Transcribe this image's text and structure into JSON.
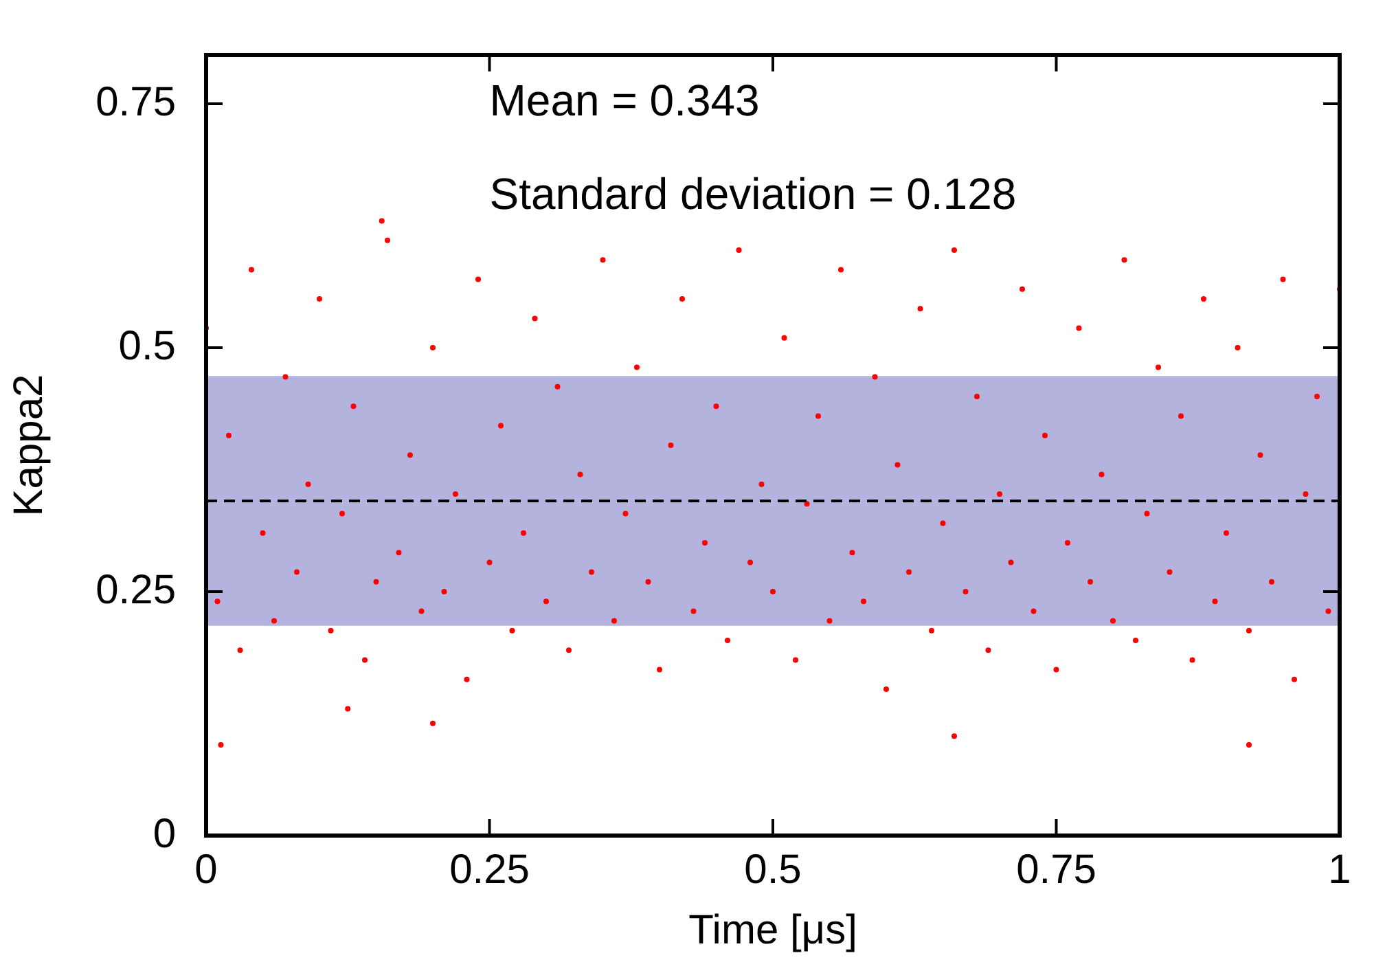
{
  "chart_data": {
    "type": "scatter",
    "xlabel": "Time [μs]",
    "ylabel": "Kappa2",
    "annotations": [
      "Mean = 0.343",
      "Standard deviation = 0.128"
    ],
    "xlim": [
      0,
      1
    ],
    "ylim": [
      0,
      0.8
    ],
    "xticks": [
      0,
      0.25,
      0.5,
      0.75,
      1
    ],
    "yticks": [
      0,
      0.25,
      0.5,
      0.75
    ],
    "grid": false,
    "legend": false,
    "marker": "circle",
    "ref_lines": [
      {
        "axis": "y",
        "value": 0.343,
        "color": "#000000",
        "line_style": "dashed"
      }
    ],
    "bands": [
      {
        "axis": "y",
        "from": 0.215,
        "to": 0.471,
        "color": "#b3b3de"
      }
    ],
    "series": [
      {
        "color": "#ff0000",
        "x": [
          0,
          0.01,
          0.02,
          0.03,
          0.04,
          0.05,
          0.06,
          0.07,
          0.08,
          0.09,
          0.1,
          0.11,
          0.12,
          0.13,
          0.14,
          0.15,
          0.16,
          0.17,
          0.18,
          0.19,
          0.2,
          0.21,
          0.22,
          0.23,
          0.24,
          0.25,
          0.26,
          0.27,
          0.28,
          0.29,
          0.3,
          0.31,
          0.32,
          0.33,
          0.34,
          0.35,
          0.36,
          0.37,
          0.38,
          0.39,
          0.4,
          0.41,
          0.42,
          0.43,
          0.44,
          0.45,
          0.46,
          0.47,
          0.48,
          0.49,
          0.5,
          0.51,
          0.52,
          0.53,
          0.54,
          0.55,
          0.56,
          0.57,
          0.58,
          0.59,
          0.6,
          0.61,
          0.62,
          0.63,
          0.64,
          0.65,
          0.66,
          0.67,
          0.68,
          0.69,
          0.7,
          0.71,
          0.72,
          0.73,
          0.74,
          0.75,
          0.76,
          0.77,
          0.78,
          0.79,
          0.8,
          0.81,
          0.82,
          0.83,
          0.84,
          0.85,
          0.86,
          0.87,
          0.88,
          0.89,
          0.9,
          0.91,
          0.92,
          0.93,
          0.94,
          0.95,
          0.96,
          0.97,
          0.98,
          0.99,
          0.013,
          0.92,
          0.66,
          0.2,
          0.155,
          0.125,
          1
        ],
        "values": [
          0.52,
          0.24,
          0.41,
          0.19,
          0.58,
          0.31,
          0.22,
          0.47,
          0.27,
          0.36,
          0.55,
          0.21,
          0.33,
          0.44,
          0.18,
          0.26,
          0.61,
          0.29,
          0.39,
          0.23,
          0.5,
          0.25,
          0.35,
          0.16,
          0.57,
          0.28,
          0.42,
          0.21,
          0.31,
          0.53,
          0.24,
          0.46,
          0.19,
          0.37,
          0.27,
          0.59,
          0.22,
          0.33,
          0.48,
          0.26,
          0.17,
          0.4,
          0.55,
          0.23,
          0.3,
          0.44,
          0.2,
          0.6,
          0.28,
          0.36,
          0.25,
          0.51,
          0.18,
          0.34,
          0.43,
          0.22,
          0.58,
          0.29,
          0.24,
          0.47,
          0.15,
          0.38,
          0.27,
          0.54,
          0.21,
          0.32,
          0.6,
          0.25,
          0.45,
          0.19,
          0.35,
          0.28,
          0.56,
          0.23,
          0.41,
          0.17,
          0.3,
          0.52,
          0.26,
          0.37,
          0.22,
          0.59,
          0.2,
          0.33,
          0.48,
          0.27,
          0.43,
          0.18,
          0.55,
          0.24,
          0.31,
          0.5,
          0.21,
          0.39,
          0.26,
          0.57,
          0.16,
          0.35,
          0.45,
          0.23,
          0.093,
          0.093,
          0.102,
          0.115,
          0.63,
          0.13,
          0.56
        ]
      }
    ]
  }
}
